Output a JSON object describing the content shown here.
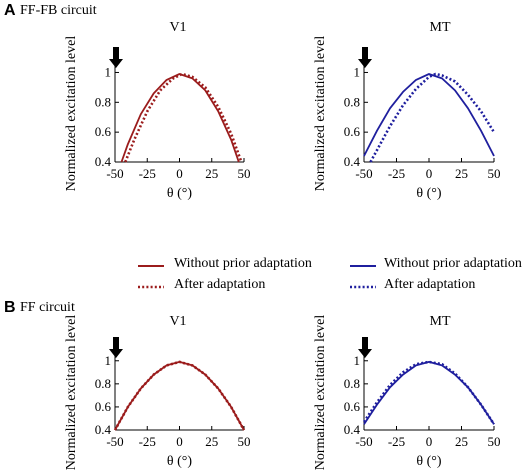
{
  "panels": [
    {
      "letter": "A",
      "title": "FF-FB circuit"
    },
    {
      "letter": "B",
      "title": "FF circuit"
    }
  ],
  "legend": {
    "v1": {
      "solid": "Without prior adaptation",
      "dotted": "After adaptation",
      "color": "#9b1c1c"
    },
    "mt": {
      "solid": "Without prior adaptation",
      "dotted": "After adaptation",
      "color": "#1f1f9e"
    }
  },
  "chart_data": [
    {
      "type": "line",
      "panel": "A",
      "title": "V1",
      "xlabel": "θ (°)",
      "ylabel": "Normalized excitation level",
      "xlim": [
        -50,
        50
      ],
      "ylim": [
        0.4,
        1.05
      ],
      "xticks": [
        "-50",
        "-25",
        "0",
        "25",
        "50"
      ],
      "yticks": [
        "0.4",
        "0.6",
        "0.8",
        "1"
      ],
      "arrow_at_x": -50,
      "color": "#9b1c1c",
      "series": [
        {
          "style": "solid",
          "x": [
            -45,
            -40,
            -30,
            -20,
            -10,
            0,
            10,
            20,
            30,
            40,
            46
          ],
          "y": [
            0.4,
            0.52,
            0.72,
            0.86,
            0.95,
            0.99,
            0.96,
            0.88,
            0.74,
            0.55,
            0.4
          ]
        },
        {
          "style": "dotted",
          "x": [
            -42,
            -35,
            -25,
            -15,
            -5,
            2,
            10,
            20,
            30,
            40,
            48
          ],
          "y": [
            0.4,
            0.55,
            0.74,
            0.88,
            0.96,
            0.99,
            0.97,
            0.9,
            0.77,
            0.59,
            0.4
          ]
        }
      ]
    },
    {
      "type": "line",
      "panel": "A",
      "title": "MT",
      "xlabel": "θ (°)",
      "ylabel": "Normalized excitation level",
      "xlim": [
        -50,
        50
      ],
      "ylim": [
        0.4,
        1.05
      ],
      "xticks": [
        "-50",
        "-25",
        "0",
        "25",
        "50"
      ],
      "yticks": [
        "0.4",
        "0.6",
        "0.8",
        "1"
      ],
      "arrow_at_x": -50,
      "color": "#1f1f9e",
      "series": [
        {
          "style": "solid",
          "x": [
            -50,
            -40,
            -30,
            -20,
            -10,
            0,
            10,
            20,
            30,
            40,
            50
          ],
          "y": [
            0.44,
            0.61,
            0.76,
            0.87,
            0.95,
            0.99,
            0.96,
            0.88,
            0.76,
            0.61,
            0.44
          ]
        },
        {
          "style": "dotted",
          "x": [
            -45,
            -40,
            -30,
            -20,
            -10,
            0,
            5,
            10,
            20,
            30,
            40,
            50
          ],
          "y": [
            0.4,
            0.48,
            0.64,
            0.78,
            0.89,
            0.97,
            0.99,
            0.98,
            0.94,
            0.85,
            0.74,
            0.6
          ]
        }
      ]
    },
    {
      "type": "line",
      "panel": "B",
      "title": "V1",
      "xlabel": "θ (°)",
      "ylabel": "Normalized excitation level",
      "xlim": [
        -50,
        50
      ],
      "ylim": [
        0.4,
        1.05
      ],
      "xticks": [
        "-50",
        "-25",
        "0",
        "25",
        "50"
      ],
      "yticks": [
        "0.4",
        "0.6",
        "0.8",
        "1"
      ],
      "arrow_at_x": -50,
      "color": "#9b1c1c",
      "series": [
        {
          "style": "solid",
          "x": [
            -50,
            -40,
            -30,
            -20,
            -10,
            0,
            10,
            20,
            30,
            40,
            50
          ],
          "y": [
            0.4,
            0.6,
            0.76,
            0.88,
            0.96,
            0.99,
            0.96,
            0.88,
            0.76,
            0.6,
            0.4
          ]
        },
        {
          "style": "dotted",
          "x": [
            -50,
            -40,
            -30,
            -20,
            -10,
            0,
            10,
            20,
            30,
            40,
            50
          ],
          "y": [
            0.4,
            0.6,
            0.76,
            0.88,
            0.96,
            0.99,
            0.96,
            0.88,
            0.76,
            0.6,
            0.4
          ]
        }
      ]
    },
    {
      "type": "line",
      "panel": "B",
      "title": "MT",
      "xlabel": "θ (°)",
      "ylabel": "Normalized excitation level",
      "xlim": [
        -50,
        50
      ],
      "ylim": [
        0.4,
        1.05
      ],
      "xticks": [
        "-50",
        "-25",
        "0",
        "25",
        "50"
      ],
      "yticks": [
        "0.4",
        "0.6",
        "0.8",
        "1"
      ],
      "arrow_at_x": -50,
      "color": "#1f1f9e",
      "series": [
        {
          "style": "solid",
          "x": [
            -50,
            -40,
            -30,
            -20,
            -10,
            0,
            10,
            20,
            30,
            40,
            50
          ],
          "y": [
            0.45,
            0.62,
            0.77,
            0.88,
            0.96,
            0.99,
            0.96,
            0.88,
            0.77,
            0.62,
            0.45
          ]
        },
        {
          "style": "dotted",
          "x": [
            -50,
            -40,
            -30,
            -20,
            -10,
            0,
            10,
            20,
            30,
            40,
            50
          ],
          "y": [
            0.47,
            0.64,
            0.79,
            0.9,
            0.97,
            0.99,
            0.97,
            0.89,
            0.77,
            0.62,
            0.45
          ]
        }
      ]
    }
  ]
}
